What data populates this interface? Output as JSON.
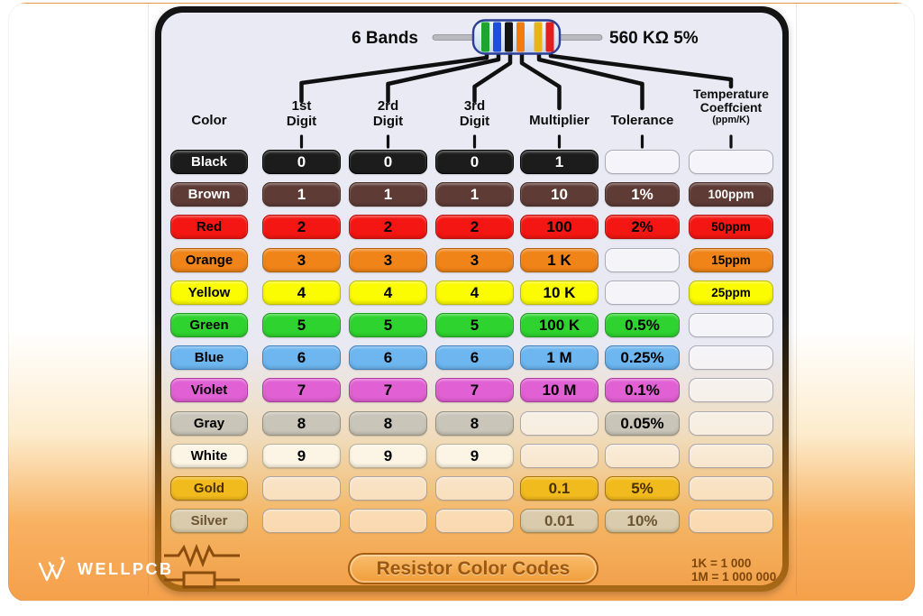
{
  "resistor_example": {
    "bands_label": "6 Bands",
    "value_label": "560 KΩ 5%",
    "band_colors": [
      "green",
      "blue",
      "black",
      "orange",
      "gold",
      "red"
    ]
  },
  "table": {
    "headers": [
      {
        "key": "color",
        "lines": [
          "Color"
        ]
      },
      {
        "key": "digit1",
        "lines": [
          "1st",
          "Digit"
        ]
      },
      {
        "key": "digit2",
        "lines": [
          "2rd",
          "Digit"
        ]
      },
      {
        "key": "digit3",
        "lines": [
          "3rd",
          "Digit"
        ]
      },
      {
        "key": "multiplier",
        "lines": [
          "Multiplier"
        ]
      },
      {
        "key": "tolerance",
        "lines": [
          "Tolerance"
        ]
      },
      {
        "key": "tempco",
        "lines": [
          "Temperature",
          "Coeffcient",
          "(ppm/K)"
        ]
      }
    ],
    "rows": [
      {
        "key": "black",
        "label": "Black",
        "bg": "#1c1c1c",
        "border": "#000000",
        "text": "#ffffff",
        "digit1": "0",
        "digit2": "0",
        "digit3": "0",
        "multiplier": "1",
        "tolerance": "",
        "tempco": ""
      },
      {
        "key": "brown",
        "label": "Brown",
        "bg": "#5f3b36",
        "border": "#452a26",
        "text": "#ffffff",
        "digit1": "1",
        "digit2": "1",
        "digit3": "1",
        "multiplier": "10",
        "tolerance": "1%",
        "tempco": "100ppm"
      },
      {
        "key": "red",
        "label": "Red",
        "bg": "#f41612",
        "border": "#b80d0a",
        "text": "#000000",
        "digit1": "2",
        "digit2": "2",
        "digit3": "2",
        "multiplier": "100",
        "tolerance": "2%",
        "tempco": "50ppm"
      },
      {
        "key": "orange",
        "label": "Orange",
        "bg": "#f08418",
        "border": "#b5620e",
        "text": "#000000",
        "digit1": "3",
        "digit2": "3",
        "digit3": "3",
        "multiplier": "1 K",
        "tolerance": "",
        "tempco": "15ppm"
      },
      {
        "key": "yellow",
        "label": "Yellow",
        "bg": "#fbfb02",
        "border": "#bdbd00",
        "text": "#000000",
        "digit1": "4",
        "digit2": "4",
        "digit3": "4",
        "multiplier": "10 K",
        "tolerance": "",
        "tempco": "25ppm"
      },
      {
        "key": "green",
        "label": "Green",
        "bg": "#2fd32f",
        "border": "#1d9e1d",
        "text": "#000000",
        "digit1": "5",
        "digit2": "5",
        "digit3": "5",
        "multiplier": "100 K",
        "tolerance": "0.5%",
        "tempco": ""
      },
      {
        "key": "blue",
        "label": "Blue",
        "bg": "#6db6ef",
        "border": "#3e7fbe",
        "text": "#000000",
        "digit1": "6",
        "digit2": "6",
        "digit3": "6",
        "multiplier": "1 M",
        "tolerance": "0.25%",
        "tempco": ""
      },
      {
        "key": "violet",
        "label": "Violet",
        "bg": "#e160d3",
        "border": "#ad3ca0",
        "text": "#000000",
        "digit1": "7",
        "digit2": "7",
        "digit3": "7",
        "multiplier": "10 M",
        "tolerance": "0.1%",
        "tempco": ""
      },
      {
        "key": "gray",
        "label": "Gray",
        "bg": "#c9c5b9",
        "border": "#95917f",
        "text": "#000000",
        "digit1": "8",
        "digit2": "8",
        "digit3": "8",
        "multiplier": "",
        "tolerance": "0.05%",
        "tempco": ""
      },
      {
        "key": "white",
        "label": "White",
        "bg": "#fcf5e5",
        "border": "#b8b09a",
        "text": "#000000",
        "digit1": "9",
        "digit2": "9",
        "digit3": "9",
        "multiplier": "",
        "tolerance": "",
        "tempco": ""
      },
      {
        "key": "gold",
        "label": "Gold",
        "bg": "#f2bb1d",
        "border": "#a87408",
        "text": "#4a3000",
        "digit1": "",
        "digit2": "",
        "digit3": "",
        "multiplier": "0.1",
        "tolerance": "5%",
        "tempco": ""
      },
      {
        "key": "silver",
        "label": "Silver",
        "bg": "#d9cbab",
        "border": "#a58a54",
        "text": "#6b5434",
        "digit1": "",
        "digit2": "",
        "digit3": "",
        "multiplier": "0.01",
        "tolerance": "10%",
        "tempco": ""
      }
    ]
  },
  "footer": {
    "banner_title": "Resistor Color Codes",
    "notes": [
      "1K = 1 000",
      "1M = 1 000 000"
    ],
    "brand": "WELLPCB"
  },
  "theme": {
    "page_bg": "#ffffff",
    "gradient_orange_bottom": "#f5a04b",
    "panel_lavender_top": "#eaeaf4",
    "card_border_top": "#141414",
    "card_border_bottom": "#a86a16",
    "banner_text": "#9c5810",
    "footer_ink": "#8a4d0e",
    "line_ink": "#101010"
  }
}
